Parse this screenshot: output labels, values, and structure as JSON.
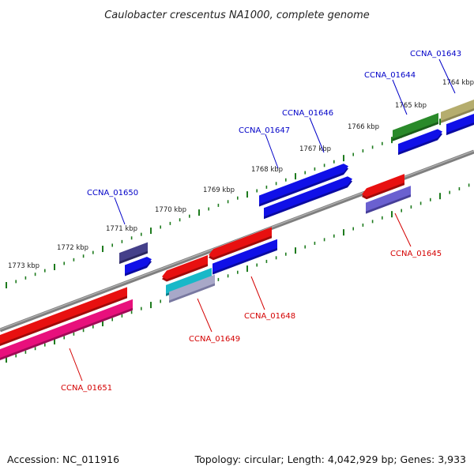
{
  "title": "Caulobacter crescentus NA1000, complete genome",
  "footer": {
    "accession": "Accession: NC_011916",
    "summary": "Topology: circular; Length: 4,042,929 bp; Genes: 3,933"
  },
  "colors": {
    "backbone": "#808080",
    "tick": "#1e7b1e",
    "forward_label": "#0000c8",
    "reverse_label": "#d40000"
  },
  "kbp_labels": [
    {
      "text": "1764 kbp"
    },
    {
      "text": "1765 kbp"
    },
    {
      "text": "1766 kbp"
    },
    {
      "text": "1767 kbp"
    },
    {
      "text": "1768 kbp"
    },
    {
      "text": "1769 kbp"
    },
    {
      "text": "1770 kbp"
    },
    {
      "text": "1771 kbp"
    },
    {
      "text": "1772 kbp"
    },
    {
      "text": "1773 kbp"
    }
  ],
  "gene_labels": [
    {
      "name": "CCNA_01643",
      "strand": "forward"
    },
    {
      "name": "CCNA_01644",
      "strand": "forward"
    },
    {
      "name": "CCNA_01646",
      "strand": "forward"
    },
    {
      "name": "CCNA_01647",
      "strand": "forward"
    },
    {
      "name": "CCNA_01650",
      "strand": "forward"
    },
    {
      "name": "CCNA_01645",
      "strand": "reverse"
    },
    {
      "name": "CCNA_01648",
      "strand": "reverse"
    },
    {
      "name": "CCNA_01649",
      "strand": "reverse"
    },
    {
      "name": "CCNA_01651",
      "strand": "reverse"
    }
  ]
}
